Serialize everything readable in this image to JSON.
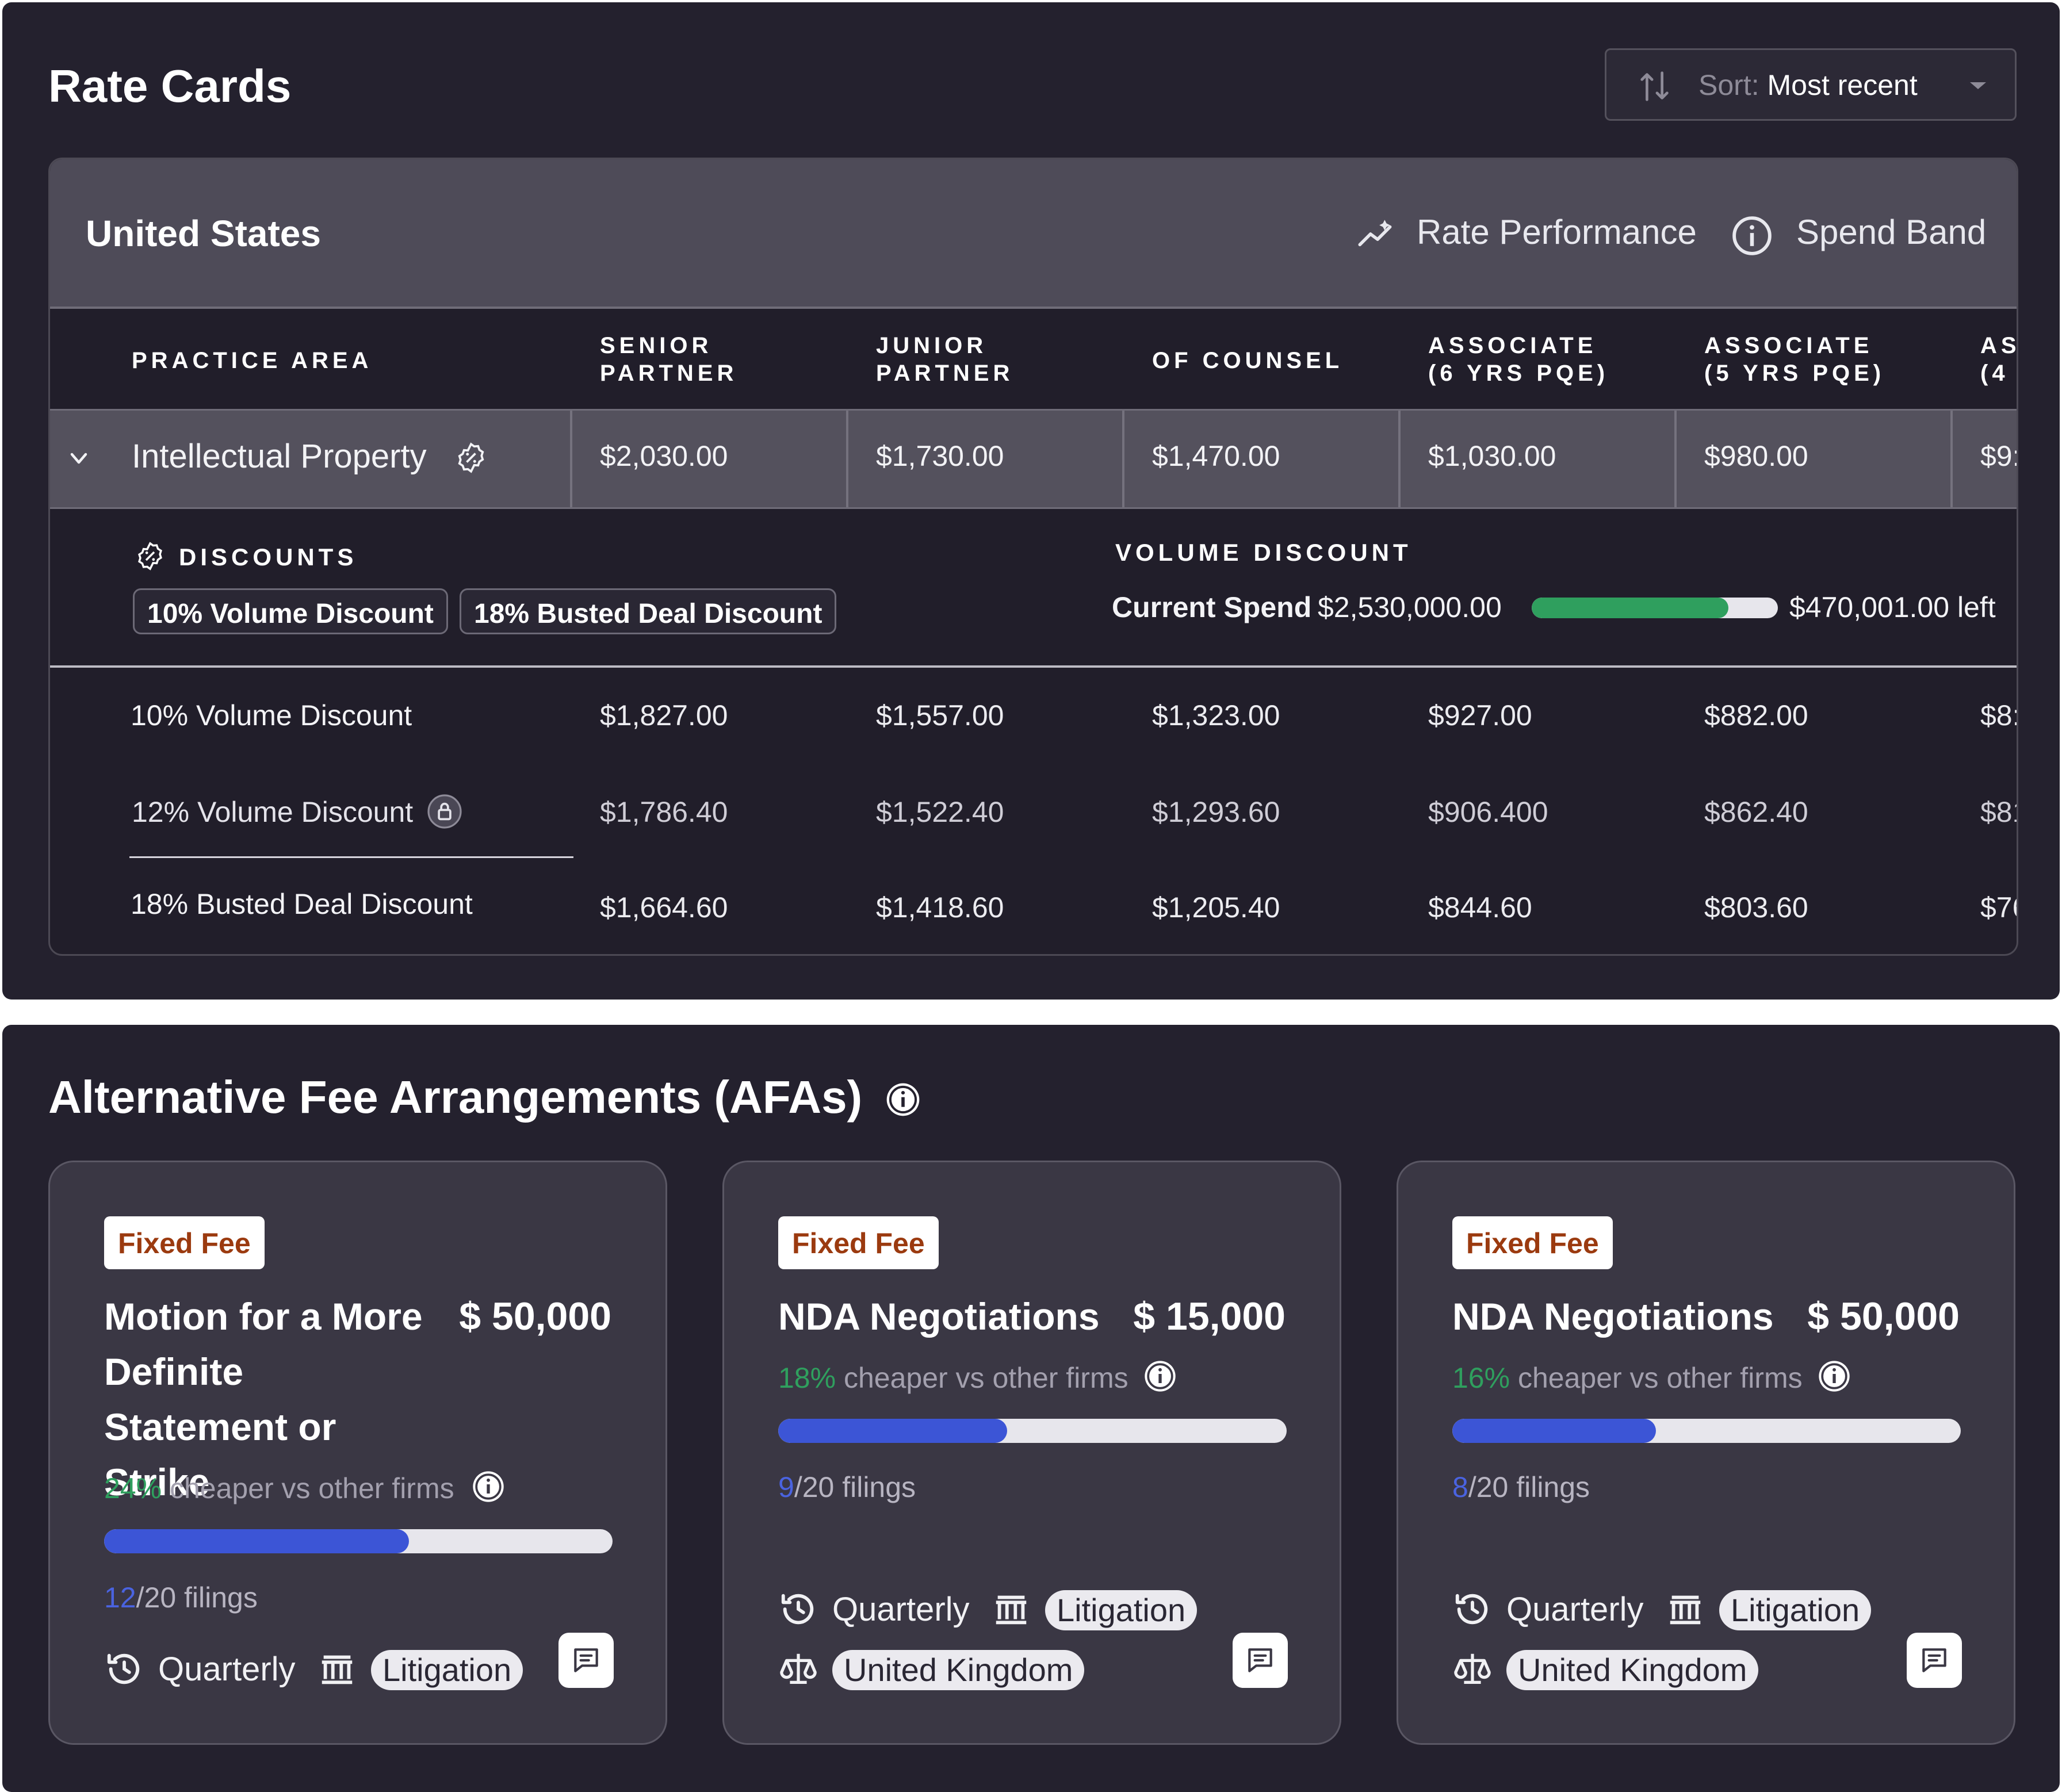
{
  "rate_cards": {
    "title": "Rate Cards",
    "sort": {
      "label": "Sort:",
      "value": "Most recent"
    },
    "region": {
      "name": "United States",
      "rate_performance": "Rate Performance",
      "spend_band": "Spend Band"
    },
    "columns": {
      "practice_area": "PRACTICE AREA",
      "c1_l1": "SENIOR",
      "c1_l2": "PARTNER",
      "c2_l1": "JUNIOR",
      "c2_l2": "PARTNER",
      "c3_l1": "OF COUNSEL",
      "c4_l1": "ASSOCIATE",
      "c4_l2": "(6 YRS PQE)",
      "c5_l1": "ASSOCIATE",
      "c5_l2": "(5 YRS PQE)",
      "c6_l1": "AS",
      "c6_l2": "(4"
    },
    "ip_row": {
      "name": "Intellectual Property",
      "values": [
        "$2,030.00",
        "$1,730.00",
        "$1,470.00",
        "$1,030.00",
        "$980.00",
        "$9:"
      ]
    },
    "discounts": {
      "heading": "DISCOUNTS",
      "chips": [
        "10% Volume Discount",
        "18% Busted Deal Discount"
      ],
      "volume_heading": "VOLUME DISCOUNT",
      "current_spend_label": "Current Spend",
      "current_spend_value": "$2,530,000.00",
      "progress": 0.8,
      "left_text": "$470,001.00 left"
    },
    "discount_rows": [
      {
        "name": "10% Volume Discount",
        "values": [
          "$1,827.00",
          "$1,557.00",
          "$1,323.00",
          "$927.00",
          "$882.00",
          "$8:"
        ]
      },
      {
        "name": "12% Volume Discount",
        "values": [
          "$1,786.40",
          "$1,522.40",
          "$1,293.60",
          "$906.400",
          "$862.40",
          "$81"
        ]
      },
      {
        "name": "18% Busted Deal Discount",
        "values": [
          "$1,664.60",
          "$1,418.60",
          "$1,205.40",
          "$844.60",
          "$803.60",
          "$76"
        ]
      }
    ]
  },
  "afas": {
    "title": "Alternative Fee Arrangements (AFAs)",
    "cards": [
      {
        "tag": "Fixed Fee",
        "name": "Motion for a More Definite Statement or Strike",
        "price": "$ 50,000",
        "pct": "24%",
        "cheaper": " cheaper vs other firms",
        "done": "12",
        "total": "/20 filings",
        "progress": 0.6,
        "frequency": "Quarterly",
        "practice": "Litigation"
      },
      {
        "tag": "Fixed Fee",
        "name": "NDA Negotiations",
        "price": "$ 15,000",
        "pct": "18%",
        "cheaper": " cheaper vs other firms",
        "done": "9",
        "total": "/20 filings",
        "progress": 0.45,
        "frequency": "Quarterly",
        "practice": "Litigation",
        "jurisdiction": "United Kingdom"
      },
      {
        "tag": "Fixed Fee",
        "name": "NDA Negotiations",
        "price": "$ 50,000",
        "pct": "16%",
        "cheaper": " cheaper vs other firms",
        "done": "8",
        "total": "/20 filings",
        "progress": 0.4,
        "frequency": "Quarterly",
        "practice": "Litigation",
        "jurisdiction": "United Kingdom"
      }
    ]
  },
  "colors": {
    "panel": "#24212e",
    "accent_blue": "#3c55d6",
    "accent_green": "#2f9f5e",
    "tag_text": "#9b3a0f"
  }
}
